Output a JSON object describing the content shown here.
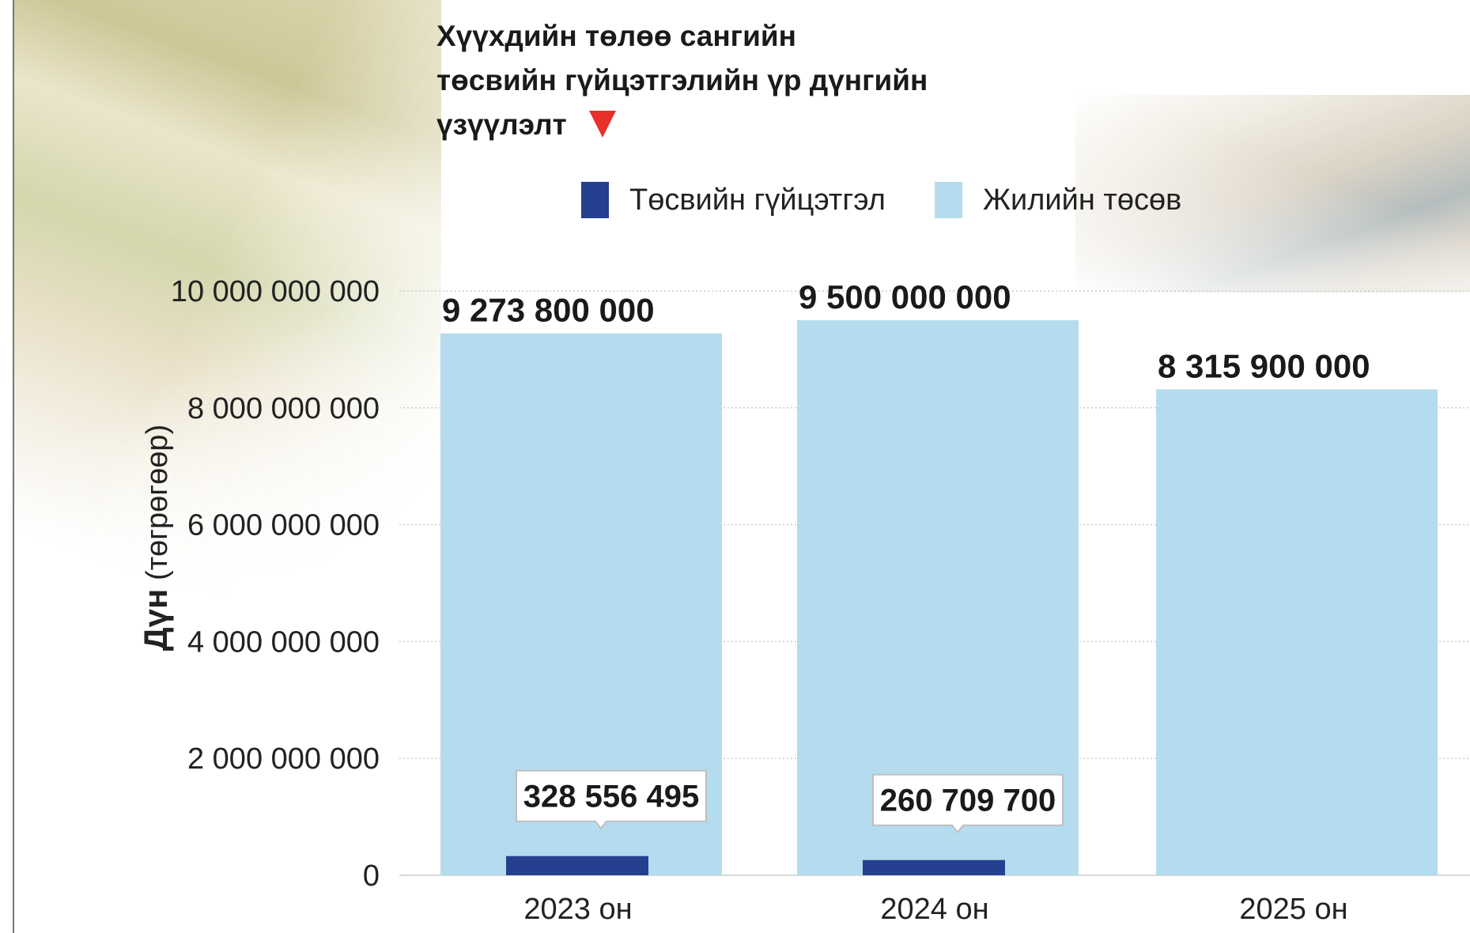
{
  "title_lines": [
    "Хүүхдийн төлөө сангийн",
    "төсвийн гүйцэтгэлийн үр дүнгийн",
    "үзүүлэлт"
  ],
  "ylabel_main": "Дүн",
  "ylabel_unit": "(төгрөгөөр)",
  "colors": {
    "execution": "#24408e",
    "budget": "#b5dcee",
    "marker": "#e8302b",
    "grid": "#cccccc"
  },
  "chart_data": {
    "type": "bar",
    "categories": [
      "2023 он",
      "2024 он",
      "2025 он"
    ],
    "series": [
      {
        "name": "Жилийн төсөв",
        "values": [
          9273800000,
          9500000000,
          8315900000
        ],
        "labels": [
          "9 273 800 000",
          "9 500 000 000",
          "8 315 900 000"
        ]
      },
      {
        "name": "Төсвийн гүйцэтгэл",
        "values": [
          328556495,
          260709700,
          null
        ],
        "labels": [
          "328 556 495",
          "260 709 700",
          null
        ]
      }
    ],
    "legend": [
      "Төсвийн гүйцэтгэл",
      "Жилийн төсөв"
    ],
    "legend_position": "top",
    "ylim": [
      0,
      10000000000
    ],
    "yticks": [
      0,
      2000000000,
      4000000000,
      6000000000,
      8000000000,
      10000000000
    ],
    "ytick_labels": [
      "0",
      "2 000 000 000",
      "4 000 000 000",
      "6 000 000 000",
      "8 000 000 000",
      "10 000 000 000"
    ],
    "grid": true
  }
}
